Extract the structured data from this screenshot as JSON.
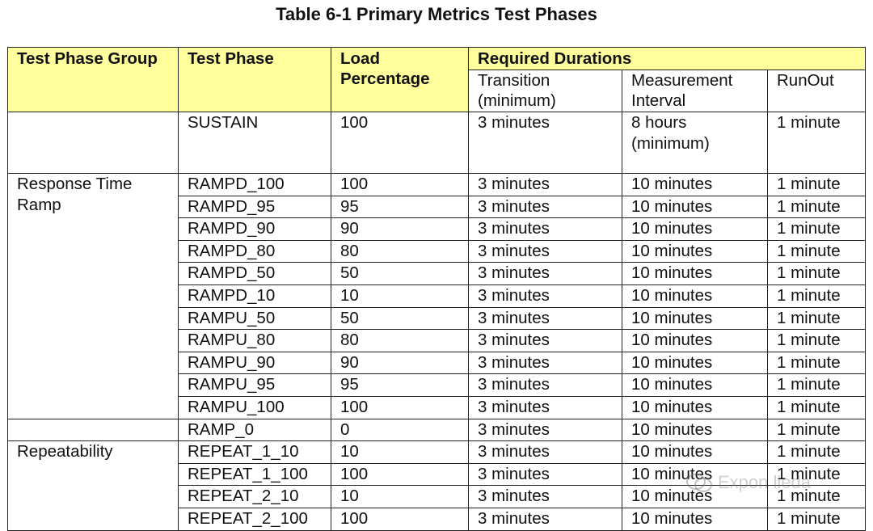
{
  "title": "Table 6-1 Primary Metrics Test Phases",
  "headers": {
    "group": "Test Phase Group",
    "phase": "Test Phase",
    "load": "Load Percentage",
    "required": "Required Durations",
    "transition": "Transition (minimum)",
    "measurement": "Measurement Interval",
    "runout": "RunOut"
  },
  "sustain": {
    "phase": "SUSTAIN",
    "load": "100",
    "transition": "3 minutes",
    "measurement": "8 hours (minimum)",
    "runout": "1 minute"
  },
  "groups": {
    "response_time": "Response Time Ramp",
    "repeatability": "Repeatability"
  },
  "rows": [
    {
      "phase": "RAMPD_100",
      "load": "100",
      "transition": "3 minutes",
      "measurement": "10 minutes",
      "runout": "1 minute"
    },
    {
      "phase": "RAMPD_95",
      "load": "95",
      "transition": "3 minutes",
      "measurement": "10 minutes",
      "runout": "1 minute"
    },
    {
      "phase": "RAMPD_90",
      "load": "90",
      "transition": "3 minutes",
      "measurement": "10 minutes",
      "runout": "1 minute"
    },
    {
      "phase": "RAMPD_80",
      "load": "80",
      "transition": "3 minutes",
      "measurement": "10 minutes",
      "runout": "1 minute"
    },
    {
      "phase": "RAMPD_50",
      "load": "50",
      "transition": "3 minutes",
      "measurement": "10 minutes",
      "runout": "1 minute"
    },
    {
      "phase": "RAMPD_10",
      "load": "10",
      "transition": "3 minutes",
      "measurement": "10 minutes",
      "runout": "1 minute"
    },
    {
      "phase": "RAMPU_50",
      "load": "50",
      "transition": "3 minutes",
      "measurement": "10 minutes",
      "runout": "1 minute"
    },
    {
      "phase": "RAMPU_80",
      "load": "80",
      "transition": "3 minutes",
      "measurement": "10 minutes",
      "runout": "1 minute"
    },
    {
      "phase": "RAMPU_90",
      "load": "90",
      "transition": "3 minutes",
      "measurement": "10 minutes",
      "runout": "1 minute"
    },
    {
      "phase": "RAMPU_95",
      "load": "95",
      "transition": "3 minutes",
      "measurement": "10 minutes",
      "runout": "1 minute"
    },
    {
      "phase": "RAMPU_100",
      "load": "100",
      "transition": "3 minutes",
      "measurement": "10 minutes",
      "runout": "1 minute"
    },
    {
      "phase": "RAMP_0",
      "load": "0",
      "transition": "3 minutes",
      "measurement": "10 minutes",
      "runout": "1 minute"
    },
    {
      "phase": "REPEAT_1_10",
      "load": "10",
      "transition": "3 minutes",
      "measurement": "10 minutes",
      "runout": "1 minute"
    },
    {
      "phase": "REPEAT_1_100",
      "load": "100",
      "transition": "3 minutes",
      "measurement": "10 minutes",
      "runout": "1 minute"
    },
    {
      "phase": "REPEAT_2_10",
      "load": "10",
      "transition": "3 minutes",
      "measurement": "10 minutes",
      "runout": "1 minute"
    },
    {
      "phase": "REPEAT_2_100",
      "load": "100",
      "transition": "3 minutes",
      "measurement": "10 minutes",
      "runout": "1 minute"
    }
  ],
  "watermark": "Expon lieda"
}
